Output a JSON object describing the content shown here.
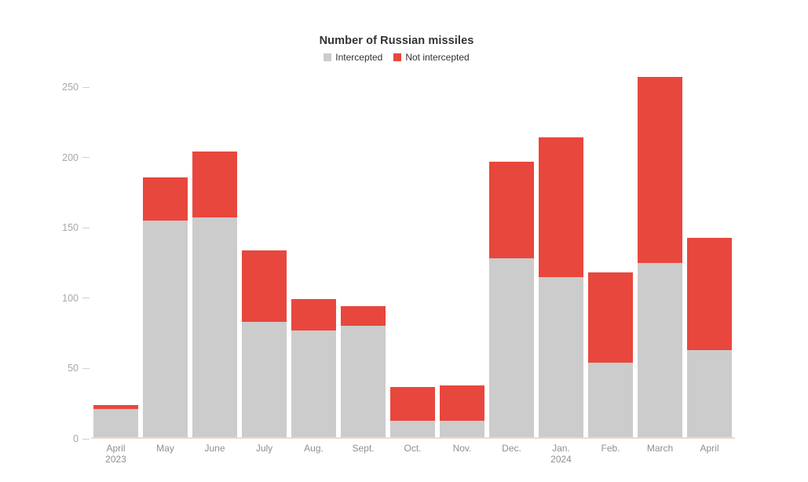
{
  "chart_data": {
    "type": "bar",
    "stacked": true,
    "title": "Number of Russian missiles",
    "legend_position": "top",
    "grid": false,
    "ylim": [
      0,
      260
    ],
    "y_ticks": [
      0,
      50,
      100,
      150,
      200,
      250
    ],
    "categories": [
      {
        "label": "April",
        "sub": "2023"
      },
      {
        "label": "May"
      },
      {
        "label": "June"
      },
      {
        "label": "July"
      },
      {
        "label": "Aug."
      },
      {
        "label": "Sept."
      },
      {
        "label": "Oct."
      },
      {
        "label": "Nov."
      },
      {
        "label": "Dec."
      },
      {
        "label": "Jan.",
        "sub": "2024"
      },
      {
        "label": "Feb."
      },
      {
        "label": "March"
      },
      {
        "label": "April"
      }
    ],
    "series": [
      {
        "name": "Intercepted",
        "color": "#cccccc",
        "values": [
          20,
          154,
          156,
          82,
          76,
          79,
          12,
          12,
          127,
          114,
          53,
          124,
          62
        ]
      },
      {
        "name": "Not intercepted",
        "color": "#e8473d",
        "values": [
          3,
          31,
          47,
          51,
          22,
          14,
          24,
          25,
          69,
          99,
          64,
          132,
          80
        ]
      }
    ],
    "colors": {
      "intercepted": "#cccccc",
      "not_intercepted": "#e8473d",
      "axis_text": "#a8a8a8",
      "category_text": "#8f8f8f",
      "title_text": "#333333",
      "tick_mark": "#cfcfcf",
      "baseline": "#f2d8d2"
    }
  }
}
